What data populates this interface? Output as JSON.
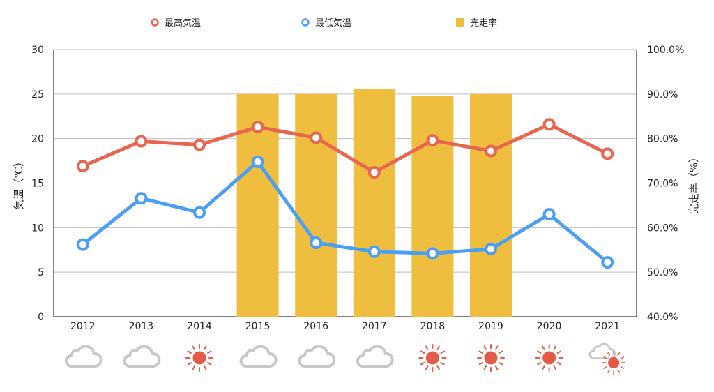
{
  "chart_data": {
    "type": "line",
    "categories": [
      "2012",
      "2013",
      "2014",
      "2015",
      "2016",
      "2017",
      "2018",
      "2019",
      "2020",
      "2021"
    ],
    "series": [
      {
        "name": "最高気温",
        "type": "line",
        "axis": "left",
        "color": "#e8664f",
        "values": [
          16.9,
          19.7,
          19.3,
          21.3,
          20.1,
          16.2,
          19.8,
          18.6,
          21.6,
          18.3
        ]
      },
      {
        "name": "最低気温",
        "type": "line",
        "axis": "left",
        "color": "#4a9ff5",
        "values": [
          8.1,
          13.3,
          11.7,
          17.4,
          8.3,
          7.3,
          7.1,
          7.6,
          11.5,
          6.1
        ]
      },
      {
        "name": "完走率",
        "type": "bar",
        "axis": "right",
        "color": "#f0be3e",
        "values": [
          null,
          null,
          null,
          90.0,
          90.0,
          91.2,
          89.6,
          90.0,
          null,
          null
        ]
      }
    ],
    "ylabel": "気温（℃）",
    "y2label": "完走率（%）",
    "ylim": [
      0,
      30
    ],
    "y2lim": [
      40,
      100
    ],
    "yticks": [
      "0",
      "5",
      "10",
      "15",
      "20",
      "25",
      "30"
    ],
    "y2ticks": [
      "40.0%",
      "50.0%",
      "60.0%",
      "70.0%",
      "80.0%",
      "90.0%",
      "100.0%"
    ],
    "grid": true,
    "legend_position": "top-center",
    "weather_icons": [
      "cloud-icon",
      "cloud-icon",
      "sun-icon",
      "cloud-icon",
      "cloud-icon",
      "cloud-icon",
      "sun-icon",
      "sun-icon",
      "sun-icon",
      "cloud-sun-icon"
    ],
    "weather_colors": {
      "cloud": "#c8c8c8",
      "sun": "#e45a48"
    }
  }
}
